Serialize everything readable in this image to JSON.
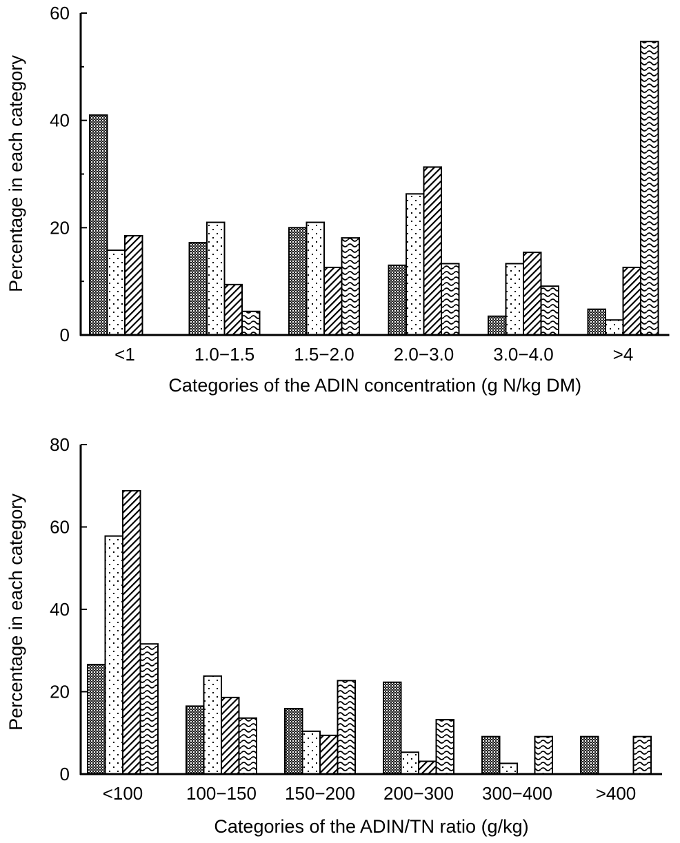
{
  "chart_data": [
    {
      "type": "bar",
      "ylabel": "Percentage in each category",
      "xlabel": "Categories of the ADIN concentration (g N/kg DM)",
      "ylim": [
        0,
        60
      ],
      "yticks": [
        "0",
        "20",
        "40",
        "60"
      ],
      "grid": false,
      "legend": "none",
      "categories": [
        "<1",
        "1.0−1.5",
        "1.5−2.0",
        "2.0−3.0",
        "3.0−4.0",
        ">4"
      ],
      "series": [
        {
          "pattern": "crosshatch",
          "values": [
            41,
            17.2,
            20,
            13,
            3.5,
            4.8
          ]
        },
        {
          "pattern": "dots",
          "values": [
            15.8,
            21,
            21,
            26.3,
            13.3,
            2.8
          ]
        },
        {
          "pattern": "diagonal",
          "values": [
            18.5,
            9.4,
            12.6,
            31.3,
            15.4,
            12.6
          ]
        },
        {
          "pattern": "wavy",
          "values": [
            null,
            4.4,
            18.1,
            13.3,
            9.1,
            54.7
          ]
        }
      ]
    },
    {
      "type": "bar",
      "ylabel": "Percentage in each category",
      "xlabel": "Categories of the ADIN/TN ratio (g/kg)",
      "ylim": [
        0,
        80
      ],
      "yticks": [
        "0",
        "20",
        "40",
        "60",
        "80"
      ],
      "grid": false,
      "legend": "none",
      "categories": [
        "<100",
        "100−150",
        "150−200",
        "200−300",
        "300−400",
        ">400"
      ],
      "series": [
        {
          "pattern": "crosshatch",
          "values": [
            26.6,
            16.5,
            15.9,
            22.3,
            9.1,
            9.1
          ]
        },
        {
          "pattern": "dots",
          "values": [
            57.8,
            23.8,
            10.4,
            5.3,
            2.6,
            null
          ]
        },
        {
          "pattern": "diagonal",
          "values": [
            68.8,
            18.6,
            9.4,
            3.1,
            null,
            null
          ]
        },
        {
          "pattern": "wavy",
          "values": [
            31.6,
            13.6,
            22.7,
            13.2,
            9.1,
            9.1
          ]
        }
      ]
    }
  ]
}
